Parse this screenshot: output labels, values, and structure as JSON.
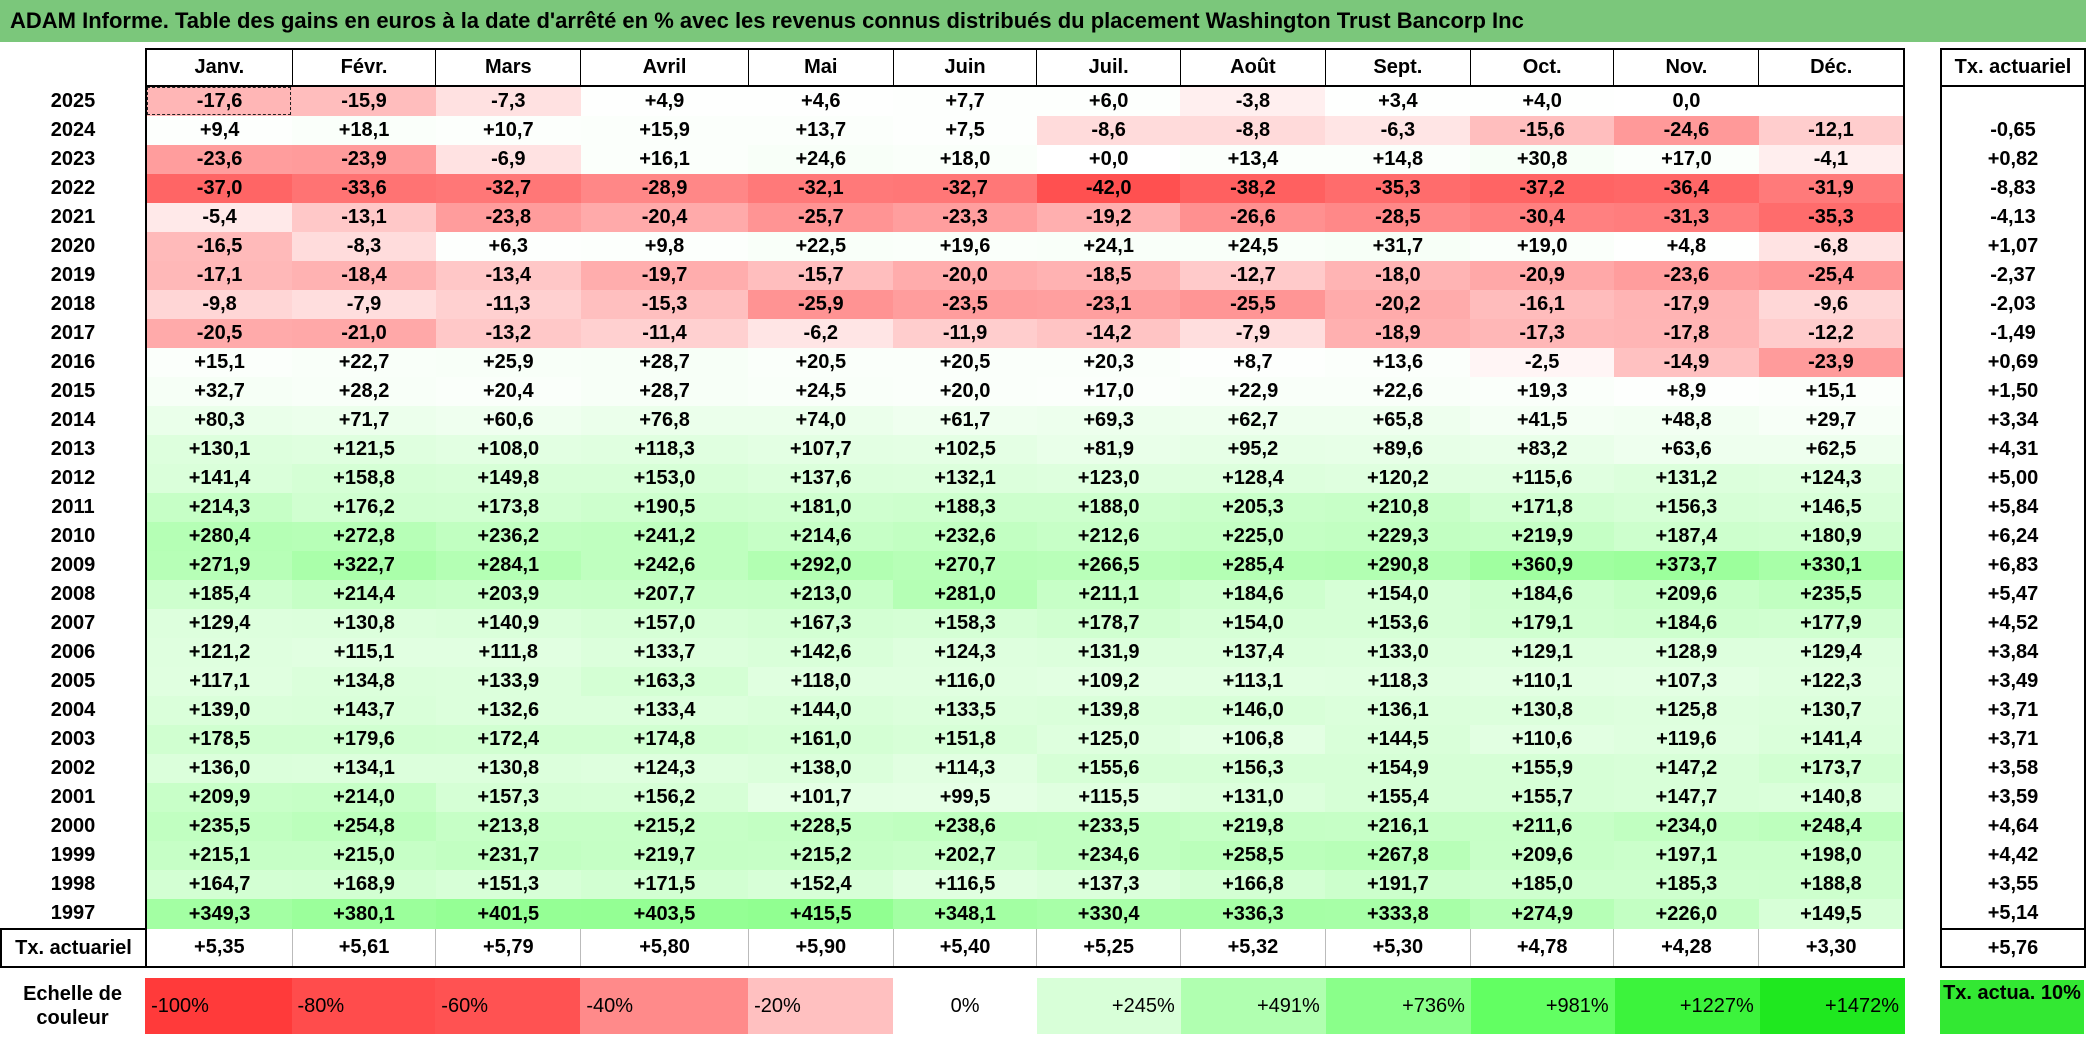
{
  "title": "ADAM Informe. Table des gains en euros à la date d'arrêté en % avec les revenus connus distribués du placement Washington Trust Bancorp Inc",
  "months": [
    "Janv.",
    "Févr.",
    "Mars",
    "Avril",
    "Mai",
    "Juin",
    "Juil.",
    "Août",
    "Sept.",
    "Oct.",
    "Nov.",
    "Déc."
  ],
  "actuarial_header": "Tx. actuariel",
  "rows": [
    {
      "year": "2025",
      "values": [
        "-17,6",
        "-15,9",
        "-7,3",
        "+4,9",
        "+4,6",
        "+7,7",
        "+6,0",
        "-3,8",
        "+3,4",
        "+4,0",
        "0,0",
        ""
      ],
      "rate": ""
    },
    {
      "year": "2024",
      "values": [
        "+9,4",
        "+18,1",
        "+10,7",
        "+15,9",
        "+13,7",
        "+7,5",
        "-8,6",
        "-8,8",
        "-6,3",
        "-15,6",
        "-24,6",
        "-12,1"
      ],
      "rate": "-0,65"
    },
    {
      "year": "2023",
      "values": [
        "-23,6",
        "-23,9",
        "-6,9",
        "+16,1",
        "+24,6",
        "+18,0",
        "+0,0",
        "+13,4",
        "+14,8",
        "+30,8",
        "+17,0",
        "-4,1"
      ],
      "rate": "+0,82"
    },
    {
      "year": "2022",
      "values": [
        "-37,0",
        "-33,6",
        "-32,7",
        "-28,9",
        "-32,1",
        "-32,7",
        "-42,0",
        "-38,2",
        "-35,3",
        "-37,2",
        "-36,4",
        "-31,9"
      ],
      "rate": "-8,83"
    },
    {
      "year": "2021",
      "values": [
        "-5,4",
        "-13,1",
        "-23,8",
        "-20,4",
        "-25,7",
        "-23,3",
        "-19,2",
        "-26,6",
        "-28,5",
        "-30,4",
        "-31,3",
        "-35,3"
      ],
      "rate": "-4,13"
    },
    {
      "year": "2020",
      "values": [
        "-16,5",
        "-8,3",
        "+6,3",
        "+9,8",
        "+22,5",
        "+19,6",
        "+24,1",
        "+24,5",
        "+31,7",
        "+19,0",
        "+4,8",
        "-6,8"
      ],
      "rate": "+1,07"
    },
    {
      "year": "2019",
      "values": [
        "-17,1",
        "-18,4",
        "-13,4",
        "-19,7",
        "-15,7",
        "-20,0",
        "-18,5",
        "-12,7",
        "-18,0",
        "-20,9",
        "-23,6",
        "-25,4"
      ],
      "rate": "-2,37"
    },
    {
      "year": "2018",
      "values": [
        "-9,8",
        "-7,9",
        "-11,3",
        "-15,3",
        "-25,9",
        "-23,5",
        "-23,1",
        "-25,5",
        "-20,2",
        "-16,1",
        "-17,9",
        "-9,6"
      ],
      "rate": "-2,03"
    },
    {
      "year": "2017",
      "values": [
        "-20,5",
        "-21,0",
        "-13,2",
        "-11,4",
        "-6,2",
        "-11,9",
        "-14,2",
        "-7,9",
        "-18,9",
        "-17,3",
        "-17,8",
        "-12,2"
      ],
      "rate": "-1,49"
    },
    {
      "year": "2016",
      "values": [
        "+15,1",
        "+22,7",
        "+25,9",
        "+28,7",
        "+20,5",
        "+20,5",
        "+20,3",
        "+8,7",
        "+13,6",
        "-2,5",
        "-14,9",
        "-23,9"
      ],
      "rate": "+0,69"
    },
    {
      "year": "2015",
      "values": [
        "+32,7",
        "+28,2",
        "+20,4",
        "+28,7",
        "+24,5",
        "+20,0",
        "+17,0",
        "+22,9",
        "+22,6",
        "+19,3",
        "+8,9",
        "+15,1"
      ],
      "rate": "+1,50"
    },
    {
      "year": "2014",
      "values": [
        "+80,3",
        "+71,7",
        "+60,6",
        "+76,8",
        "+74,0",
        "+61,7",
        "+69,3",
        "+62,7",
        "+65,8",
        "+41,5",
        "+48,8",
        "+29,7"
      ],
      "rate": "+3,34"
    },
    {
      "year": "2013",
      "values": [
        "+130,1",
        "+121,5",
        "+108,0",
        "+118,3",
        "+107,7",
        "+102,5",
        "+81,9",
        "+95,2",
        "+89,6",
        "+83,2",
        "+63,6",
        "+62,5"
      ],
      "rate": "+4,31"
    },
    {
      "year": "2012",
      "values": [
        "+141,4",
        "+158,8",
        "+149,8",
        "+153,0",
        "+137,6",
        "+132,1",
        "+123,0",
        "+128,4",
        "+120,2",
        "+115,6",
        "+131,2",
        "+124,3"
      ],
      "rate": "+5,00"
    },
    {
      "year": "2011",
      "values": [
        "+214,3",
        "+176,2",
        "+173,8",
        "+190,5",
        "+181,0",
        "+188,3",
        "+188,0",
        "+205,3",
        "+210,8",
        "+171,8",
        "+156,3",
        "+146,5"
      ],
      "rate": "+5,84"
    },
    {
      "year": "2010",
      "values": [
        "+280,4",
        "+272,8",
        "+236,2",
        "+241,2",
        "+214,6",
        "+232,6",
        "+212,6",
        "+225,0",
        "+229,3",
        "+219,9",
        "+187,4",
        "+180,9"
      ],
      "rate": "+6,24"
    },
    {
      "year": "2009",
      "values": [
        "+271,9",
        "+322,7",
        "+284,1",
        "+242,6",
        "+292,0",
        "+270,7",
        "+266,5",
        "+285,4",
        "+290,8",
        "+360,9",
        "+373,7",
        "+330,1"
      ],
      "rate": "+6,83"
    },
    {
      "year": "2008",
      "values": [
        "+185,4",
        "+214,4",
        "+203,9",
        "+207,7",
        "+213,0",
        "+281,0",
        "+211,1",
        "+184,6",
        "+154,0",
        "+184,6",
        "+209,6",
        "+235,5"
      ],
      "rate": "+5,47"
    },
    {
      "year": "2007",
      "values": [
        "+129,4",
        "+130,8",
        "+140,9",
        "+157,0",
        "+167,3",
        "+158,3",
        "+178,7",
        "+154,0",
        "+153,6",
        "+179,1",
        "+184,6",
        "+177,9"
      ],
      "rate": "+4,52"
    },
    {
      "year": "2006",
      "values": [
        "+121,2",
        "+115,1",
        "+111,8",
        "+133,7",
        "+142,6",
        "+124,3",
        "+131,9",
        "+137,4",
        "+133,0",
        "+129,1",
        "+128,9",
        "+129,4"
      ],
      "rate": "+3,84"
    },
    {
      "year": "2005",
      "values": [
        "+117,1",
        "+134,8",
        "+133,9",
        "+163,3",
        "+118,0",
        "+116,0",
        "+109,2",
        "+113,1",
        "+118,3",
        "+110,1",
        "+107,3",
        "+122,3"
      ],
      "rate": "+3,49"
    },
    {
      "year": "2004",
      "values": [
        "+139,0",
        "+143,7",
        "+132,6",
        "+133,4",
        "+144,0",
        "+133,5",
        "+139,8",
        "+146,0",
        "+136,1",
        "+130,8",
        "+125,8",
        "+130,7"
      ],
      "rate": "+3,71"
    },
    {
      "year": "2003",
      "values": [
        "+178,5",
        "+179,6",
        "+172,4",
        "+174,8",
        "+161,0",
        "+151,8",
        "+125,0",
        "+106,8",
        "+144,5",
        "+110,6",
        "+119,6",
        "+141,4"
      ],
      "rate": "+3,71"
    },
    {
      "year": "2002",
      "values": [
        "+136,0",
        "+134,1",
        "+130,8",
        "+124,3",
        "+138,0",
        "+114,3",
        "+155,6",
        "+156,3",
        "+154,9",
        "+155,9",
        "+147,2",
        "+173,7"
      ],
      "rate": "+3,58"
    },
    {
      "year": "2001",
      "values": [
        "+209,9",
        "+214,0",
        "+157,3",
        "+156,2",
        "+101,7",
        "+99,5",
        "+115,5",
        "+131,0",
        "+155,4",
        "+155,7",
        "+147,7",
        "+140,8"
      ],
      "rate": "+3,59"
    },
    {
      "year": "2000",
      "values": [
        "+235,5",
        "+254,8",
        "+213,8",
        "+215,2",
        "+228,5",
        "+238,6",
        "+233,5",
        "+219,8",
        "+216,1",
        "+211,6",
        "+234,0",
        "+248,4"
      ],
      "rate": "+4,64"
    },
    {
      "year": "1999",
      "values": [
        "+215,1",
        "+215,0",
        "+231,7",
        "+219,7",
        "+215,2",
        "+202,7",
        "+234,6",
        "+258,5",
        "+267,8",
        "+209,6",
        "+197,1",
        "+198,0"
      ],
      "rate": "+4,42"
    },
    {
      "year": "1998",
      "values": [
        "+164,7",
        "+168,9",
        "+151,3",
        "+171,5",
        "+152,4",
        "+116,5",
        "+137,3",
        "+166,8",
        "+191,7",
        "+185,0",
        "+185,3",
        "+188,8"
      ],
      "rate": "+3,55"
    },
    {
      "year": "1997",
      "values": [
        "+349,3",
        "+380,1",
        "+401,5",
        "+403,5",
        "+415,5",
        "+348,1",
        "+330,4",
        "+336,3",
        "+333,8",
        "+274,9",
        "+226,0",
        "+149,5"
      ],
      "rate": "+5,14"
    }
  ],
  "summary": {
    "label": "Tx. actuariel",
    "values": [
      "+5,35",
      "+5,61",
      "+5,79",
      "+5,80",
      "+5,90",
      "+5,40",
      "+5,25",
      "+5,32",
      "+5,30",
      "+4,78",
      "+4,28",
      "+3,30"
    ],
    "rate": "+5,76"
  },
  "scale": {
    "label": "Echelle de couleur",
    "cells": [
      {
        "text": "-100%",
        "color": "#ff3a3a",
        "kind": "neg"
      },
      {
        "text": "-80%",
        "color": "#ff4c4c",
        "kind": "neg"
      },
      {
        "text": "-60%",
        "color": "#ff5252",
        "kind": "neg"
      },
      {
        "text": "-40%",
        "color": "#ff8a8a",
        "kind": "neg"
      },
      {
        "text": "-20%",
        "color": "#ffc0c0",
        "kind": "neg"
      },
      {
        "text": "0%",
        "color": "#ffffff",
        "kind": "zero"
      },
      {
        "text": "+245%",
        "color": "#d8ffd8",
        "kind": "pos"
      },
      {
        "text": "+491%",
        "color": "#b0ffb0",
        "kind": "pos"
      },
      {
        "text": "+736%",
        "color": "#8aff8a",
        "kind": "pos"
      },
      {
        "text": "+981%",
        "color": "#62ff62",
        "kind": "pos"
      },
      {
        "text": "+1227%",
        "color": "#3cf33c",
        "kind": "pos"
      },
      {
        "text": "+1472%",
        "color": "#1fe81f",
        "kind": "pos"
      }
    ],
    "actuarial_text": "Tx. actua. 10%",
    "actuarial_color": "#33e833"
  },
  "colors": {
    "title_bar": "#7bc77b",
    "negative_max": "#ff5050",
    "positive_max": "#1fe81f"
  }
}
